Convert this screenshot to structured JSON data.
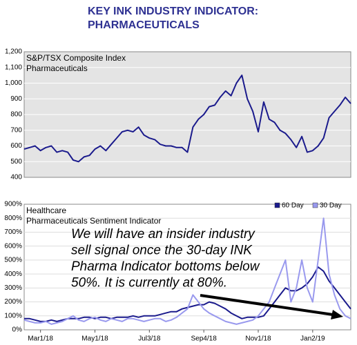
{
  "header": {
    "title_lines": [
      "KEY INK INDUSTRY INDICATOR:",
      "PHARMACEUTICALS"
    ]
  },
  "chart_data": [
    {
      "type": "line",
      "label_lines": [
        "S&P/TSX Composite Index",
        "Pharmaceuticals"
      ],
      "color": "#1a1a8c",
      "values": [
        580,
        590,
        600,
        570,
        590,
        600,
        560,
        570,
        560,
        510,
        500,
        530,
        540,
        580,
        600,
        570,
        610,
        650,
        690,
        700,
        690,
        720,
        670,
        650,
        640,
        610,
        600,
        600,
        590,
        590,
        560,
        720,
        770,
        800,
        850,
        860,
        910,
        950,
        920,
        1000,
        1050,
        900,
        820,
        690,
        880,
        770,
        750,
        700,
        680,
        640,
        590,
        660,
        560,
        570,
        600,
        650,
        780,
        820,
        860,
        910,
        870
      ],
      "ylim": [
        400,
        1200
      ],
      "yticks": [
        400,
        500,
        600,
        700,
        800,
        900,
        {
          "value": 1000,
          "label": "1,000"
        },
        {
          "value": 1100,
          "label": "1,100"
        },
        {
          "value": 1200,
          "label": "1,200"
        }
      ],
      "grid": true
    },
    {
      "type": "line",
      "label_lines": [
        "Healthcare",
        "Pharmaceuticals Sentiment Indicator"
      ],
      "categories": [
        null,
        null,
        null,
        "Mar1/18",
        null,
        null,
        null,
        null,
        null,
        null,
        null,
        null,
        null,
        "May1/18",
        null,
        null,
        null,
        null,
        null,
        null,
        null,
        null,
        null,
        "Jul3/18",
        null,
        null,
        null,
        null,
        null,
        null,
        null,
        null,
        null,
        "Sep4/18",
        null,
        null,
        null,
        null,
        null,
        null,
        null,
        null,
        null,
        "Nov1/18",
        null,
        null,
        null,
        null,
        null,
        null,
        null,
        null,
        null,
        "Jan2/19",
        null,
        null,
        null,
        null,
        null,
        null,
        null
      ],
      "series": [
        {
          "name": "60 Day",
          "color": "#1a1a8c",
          "values": [
            80,
            80,
            70,
            60,
            60,
            70,
            60,
            70,
            80,
            80,
            80,
            90,
            90,
            80,
            90,
            90,
            80,
            90,
            90,
            90,
            100,
            90,
            100,
            100,
            100,
            110,
            120,
            130,
            130,
            150,
            160,
            170,
            180,
            180,
            200,
            190,
            170,
            150,
            120,
            100,
            80,
            90,
            90,
            90,
            100,
            150,
            200,
            250,
            300,
            280,
            280,
            300,
            330,
            380,
            450,
            420,
            350,
            300,
            250,
            200,
            150
          ]
        },
        {
          "name": "30 Day",
          "color": "#9999ee",
          "values": [
            70,
            60,
            50,
            50,
            60,
            40,
            50,
            60,
            80,
            100,
            70,
            60,
            80,
            90,
            70,
            60,
            80,
            70,
            60,
            80,
            80,
            70,
            60,
            70,
            80,
            80,
            60,
            70,
            90,
            120,
            150,
            250,
            200,
            150,
            120,
            100,
            80,
            60,
            50,
            40,
            50,
            60,
            70,
            100,
            150,
            200,
            300,
            400,
            500,
            200,
            300,
            500,
            300,
            200,
            500,
            800,
            400,
            250,
            150,
            100,
            80
          ]
        }
      ],
      "ylim": [
        0,
        900
      ],
      "yticks": [
        {
          "value": 0,
          "label": "0%"
        },
        {
          "value": 100,
          "label": "100%"
        },
        {
          "value": 200,
          "label": "200%"
        },
        {
          "value": 300,
          "label": "300%"
        },
        {
          "value": 400,
          "label": "400%"
        },
        {
          "value": 500,
          "label": "500%"
        },
        {
          "value": 600,
          "label": "600%"
        },
        {
          "value": 700,
          "label": "700%"
        },
        {
          "value": 800,
          "label": "800%"
        },
        {
          "value": 900,
          "label": "900%"
        }
      ],
      "grid": true,
      "legend": "upper right",
      "annotation_lines": [
        "We will have an insider industry",
        "sell signal once the 30-day INK",
        "Pharma Indicator bottoms below",
        "50%. It is currently at 80%."
      ]
    }
  ]
}
